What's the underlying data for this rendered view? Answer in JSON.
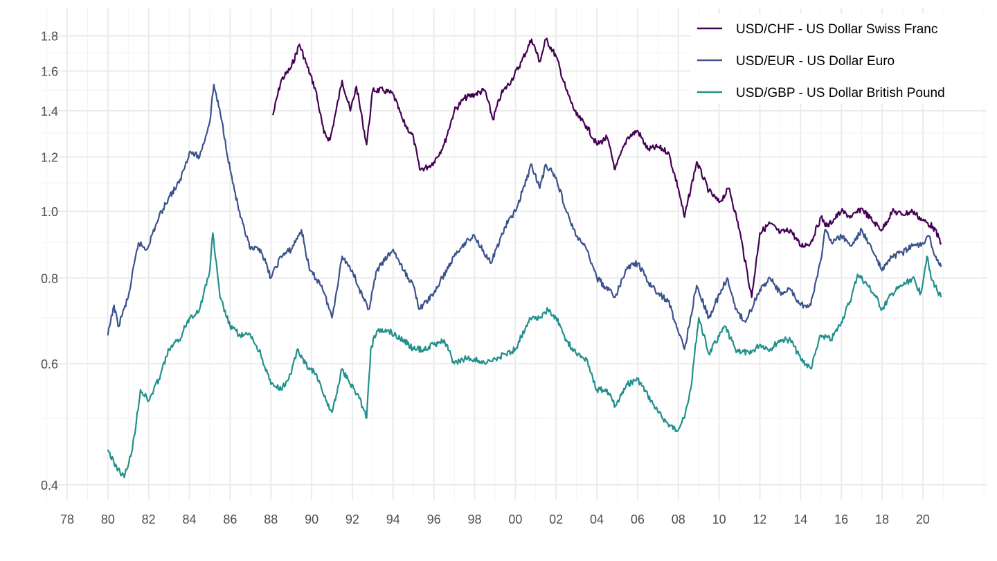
{
  "chart_data": {
    "type": "line",
    "title": "",
    "xlabel": "",
    "ylabel": "",
    "y_scale": "log",
    "ylim": [
      0.38,
      1.95
    ],
    "xlim": [
      1976.7,
      2023.2
    ],
    "grid": true,
    "legend_position": "top-right",
    "x_ticks": [
      {
        "value": 1978,
        "label": "78"
      },
      {
        "value": 1980,
        "label": "80"
      },
      {
        "value": 1982,
        "label": "82"
      },
      {
        "value": 1984,
        "label": "84"
      },
      {
        "value": 1986,
        "label": "86"
      },
      {
        "value": 1988,
        "label": "88"
      },
      {
        "value": 1990,
        "label": "90"
      },
      {
        "value": 1992,
        "label": "92"
      },
      {
        "value": 1994,
        "label": "94"
      },
      {
        "value": 1996,
        "label": "96"
      },
      {
        "value": 1998,
        "label": "98"
      },
      {
        "value": 2000,
        "label": "00"
      },
      {
        "value": 2002,
        "label": "02"
      },
      {
        "value": 2004,
        "label": "04"
      },
      {
        "value": 2006,
        "label": "06"
      },
      {
        "value": 2008,
        "label": "08"
      },
      {
        "value": 2010,
        "label": "10"
      },
      {
        "value": 2012,
        "label": "12"
      },
      {
        "value": 2014,
        "label": "14"
      },
      {
        "value": 2016,
        "label": "16"
      },
      {
        "value": 2018,
        "label": "18"
      },
      {
        "value": 2020,
        "label": "20"
      }
    ],
    "y_ticks": [
      {
        "value": 0.4,
        "label": "0.4"
      },
      {
        "value": 0.6,
        "label": "0.6"
      },
      {
        "value": 0.8,
        "label": "0.8"
      },
      {
        "value": 1.0,
        "label": "1.0"
      },
      {
        "value": 1.2,
        "label": "1.2"
      },
      {
        "value": 1.4,
        "label": "1.4"
      },
      {
        "value": 1.6,
        "label": "1.6"
      },
      {
        "value": 1.8,
        "label": "1.8"
      }
    ],
    "series": [
      {
        "name": "USD/CHF - US Dollar Swiss Franc",
        "color": "#440154",
        "x": [
          1988.1,
          1988.5,
          1989.0,
          1989.4,
          1989.8,
          1990.2,
          1990.6,
          1990.9,
          1991.2,
          1991.5,
          1991.9,
          1992.2,
          1992.5,
          1992.7,
          1993.0,
          1993.5,
          1994.0,
          1994.5,
          1995.0,
          1995.3,
          1995.7,
          1996.0,
          1996.5,
          1997.0,
          1997.5,
          1998.0,
          1998.5,
          1998.9,
          1999.3,
          1999.8,
          2000.3,
          2000.8,
          2001.2,
          2001.5,
          2002.0,
          2002.5,
          2003.0,
          2003.5,
          2004.0,
          2004.5,
          2004.9,
          2005.5,
          2006.0,
          2006.5,
          2007.0,
          2007.5,
          2008.0,
          2008.3,
          2008.9,
          2009.5,
          2010.0,
          2010.5,
          2011.0,
          2011.6,
          2012.0,
          2012.5,
          2013.0,
          2013.5,
          2014.0,
          2014.5,
          2015.0,
          2015.3,
          2016.0,
          2016.5,
          2017.0,
          2017.5,
          2018.0,
          2018.5,
          2019.0,
          2019.5,
          2020.0,
          2020.5,
          2020.9
        ],
        "y": [
          1.38,
          1.55,
          1.62,
          1.75,
          1.62,
          1.5,
          1.3,
          1.27,
          1.4,
          1.55,
          1.4,
          1.52,
          1.35,
          1.25,
          1.5,
          1.5,
          1.48,
          1.35,
          1.28,
          1.15,
          1.16,
          1.18,
          1.25,
          1.4,
          1.46,
          1.48,
          1.5,
          1.36,
          1.48,
          1.55,
          1.65,
          1.78,
          1.65,
          1.78,
          1.68,
          1.5,
          1.38,
          1.33,
          1.25,
          1.28,
          1.15,
          1.28,
          1.31,
          1.23,
          1.24,
          1.22,
          1.08,
          0.98,
          1.18,
          1.07,
          1.03,
          1.08,
          0.94,
          0.75,
          0.93,
          0.96,
          0.93,
          0.94,
          0.89,
          0.9,
          0.98,
          0.95,
          1.0,
          0.98,
          1.01,
          0.97,
          0.94,
          1.0,
          0.99,
          1.0,
          0.97,
          0.95,
          0.9
        ]
      },
      {
        "name": "USD/EUR - US Dollar Euro",
        "color": "#3B528B",
        "x": [
          1980.0,
          1980.3,
          1980.5,
          1981.0,
          1981.5,
          1981.9,
          1982.5,
          1983.0,
          1983.5,
          1984.0,
          1984.5,
          1985.0,
          1985.2,
          1985.6,
          1986.0,
          1986.5,
          1987.0,
          1987.5,
          1988.0,
          1988.5,
          1989.0,
          1989.5,
          1989.9,
          1990.5,
          1991.0,
          1991.5,
          1992.0,
          1992.5,
          1992.8,
          1993.2,
          1994.0,
          1994.5,
          1995.0,
          1995.3,
          1996.0,
          1997.0,
          1997.5,
          1998.0,
          1998.8,
          1999.5,
          2000.0,
          2000.8,
          2001.2,
          2001.5,
          2002.0,
          2002.5,
          2003.0,
          2003.5,
          2004.0,
          2004.9,
          2005.5,
          2006.0,
          2006.5,
          2007.0,
          2007.5,
          2008.3,
          2008.9,
          2009.5,
          2010.4,
          2010.8,
          2011.3,
          2012.0,
          2012.5,
          2013.0,
          2013.5,
          2014.0,
          2014.5,
          2015.0,
          2015.2,
          2015.6,
          2016.0,
          2016.5,
          2017.0,
          2017.5,
          2018.0,
          2018.5,
          2019.0,
          2019.5,
          2020.0,
          2020.3,
          2020.6,
          2020.9
        ],
        "y": [
          0.66,
          0.73,
          0.68,
          0.75,
          0.9,
          0.88,
          0.98,
          1.05,
          1.1,
          1.22,
          1.2,
          1.35,
          1.53,
          1.35,
          1.15,
          0.98,
          0.88,
          0.88,
          0.8,
          0.86,
          0.88,
          0.94,
          0.82,
          0.78,
          0.7,
          0.86,
          0.82,
          0.75,
          0.72,
          0.82,
          0.88,
          0.82,
          0.78,
          0.72,
          0.76,
          0.86,
          0.9,
          0.92,
          0.84,
          0.95,
          1.0,
          1.17,
          1.08,
          1.17,
          1.12,
          1.0,
          0.92,
          0.88,
          0.8,
          0.75,
          0.83,
          0.84,
          0.79,
          0.76,
          0.74,
          0.63,
          0.78,
          0.7,
          0.8,
          0.72,
          0.69,
          0.77,
          0.8,
          0.76,
          0.77,
          0.73,
          0.73,
          0.85,
          0.94,
          0.9,
          0.92,
          0.89,
          0.94,
          0.88,
          0.82,
          0.86,
          0.87,
          0.89,
          0.9,
          0.92,
          0.86,
          0.83
        ]
      },
      {
        "name": "USD/GBP - US Dollar British Pound",
        "color": "#21908C",
        "x": [
          1980.0,
          1980.3,
          1980.8,
          1981.2,
          1981.6,
          1982.0,
          1982.5,
          1983.0,
          1983.5,
          1984.0,
          1984.5,
          1985.0,
          1985.15,
          1985.5,
          1986.0,
          1986.5,
          1987.0,
          1987.5,
          1988.0,
          1988.5,
          1989.0,
          1989.3,
          1989.7,
          1990.2,
          1990.7,
          1991.0,
          1991.5,
          1991.9,
          1992.3,
          1992.7,
          1992.9,
          1993.2,
          1993.8,
          1994.5,
          1995.0,
          1995.5,
          1996.0,
          1996.5,
          1997.0,
          1997.5,
          1998.0,
          1998.5,
          1999.0,
          1999.5,
          2000.0,
          2000.7,
          2001.3,
          2001.6,
          2002.0,
          2002.5,
          2003.0,
          2003.5,
          2004.0,
          2004.5,
          2004.9,
          2005.5,
          2006.0,
          2006.5,
          2007.0,
          2007.5,
          2007.9,
          2008.3,
          2008.6,
          2009.0,
          2009.5,
          2010.3,
          2010.8,
          2011.5,
          2012.0,
          2012.5,
          2013.0,
          2013.5,
          2014.0,
          2014.5,
          2015.0,
          2015.5,
          2016.0,
          2016.5,
          2016.8,
          2017.3,
          2017.7,
          2018.0,
          2018.5,
          2019.0,
          2019.5,
          2019.9,
          2020.2,
          2020.4,
          2020.9
        ],
        "y": [
          0.45,
          0.43,
          0.41,
          0.45,
          0.55,
          0.53,
          0.57,
          0.63,
          0.65,
          0.7,
          0.72,
          0.82,
          0.93,
          0.75,
          0.68,
          0.66,
          0.66,
          0.62,
          0.56,
          0.55,
          0.58,
          0.63,
          0.6,
          0.58,
          0.53,
          0.51,
          0.59,
          0.56,
          0.54,
          0.5,
          0.63,
          0.67,
          0.67,
          0.65,
          0.63,
          0.63,
          0.64,
          0.65,
          0.6,
          0.61,
          0.61,
          0.6,
          0.61,
          0.62,
          0.63,
          0.7,
          0.7,
          0.72,
          0.7,
          0.65,
          0.62,
          0.61,
          0.55,
          0.55,
          0.52,
          0.56,
          0.57,
          0.54,
          0.51,
          0.49,
          0.48,
          0.5,
          0.55,
          0.7,
          0.62,
          0.68,
          0.63,
          0.62,
          0.64,
          0.63,
          0.65,
          0.65,
          0.61,
          0.59,
          0.66,
          0.65,
          0.69,
          0.75,
          0.81,
          0.78,
          0.75,
          0.72,
          0.76,
          0.78,
          0.8,
          0.76,
          0.86,
          0.8,
          0.75
        ]
      }
    ]
  }
}
